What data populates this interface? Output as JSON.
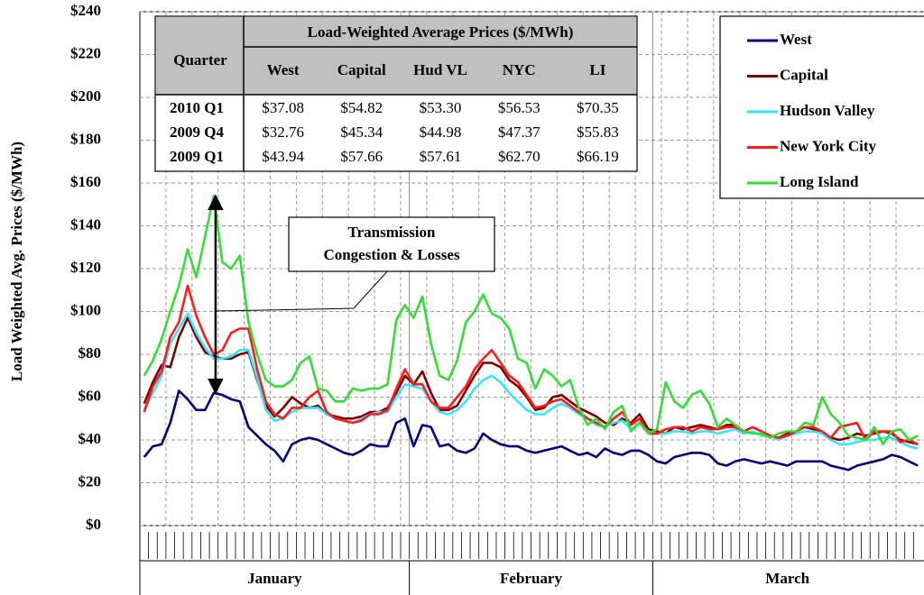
{
  "chart_data": {
    "type": "line",
    "y_label": "Load Weighted Avg. Prices  ($/MWh)",
    "ylim": [
      0,
      240
    ],
    "yticks": [
      {
        "value": 0,
        "label": "$0"
      },
      {
        "value": 20,
        "label": "$20"
      },
      {
        "value": 40,
        "label": "$40"
      },
      {
        "value": 60,
        "label": "$60"
      },
      {
        "value": 80,
        "label": "$80"
      },
      {
        "value": 100,
        "label": "$100"
      },
      {
        "value": 120,
        "label": "$120"
      },
      {
        "value": 140,
        "label": "$140"
      },
      {
        "value": 160,
        "label": "$160"
      },
      {
        "value": 180,
        "label": "$180"
      },
      {
        "value": 200,
        "label": "$200"
      },
      {
        "value": 220,
        "label": "$220"
      },
      {
        "value": 240,
        "label": "$240"
      }
    ],
    "grid": true,
    "legend": "upper right",
    "months": [
      {
        "label": "January",
        "days": 31
      },
      {
        "label": "February",
        "days": 28
      },
      {
        "label": "March",
        "days": 31
      }
    ],
    "series": [
      {
        "name": "West",
        "color": "#000080",
        "values": [
          32,
          37,
          38,
          48,
          63,
          59,
          54,
          54,
          62,
          61,
          59,
          58,
          46,
          42,
          38,
          35,
          30,
          38,
          40,
          41,
          40,
          38,
          36,
          34,
          33,
          35,
          38,
          37,
          37,
          48,
          50,
          37,
          47,
          46,
          37,
          38,
          35,
          34,
          36,
          43,
          40,
          38,
          37,
          37,
          35,
          34,
          35,
          36,
          37,
          35,
          33,
          34,
          32,
          36,
          34,
          33,
          35,
          35,
          33,
          30,
          29,
          32,
          33,
          34,
          34,
          33,
          29,
          28,
          30,
          31,
          30,
          29,
          30,
          29,
          28,
          30,
          30,
          30,
          30,
          28,
          27,
          26,
          28,
          29,
          30,
          31,
          33,
          32,
          30,
          28
        ]
      },
      {
        "name": "Capital",
        "color": "#800000",
        "values": [
          57,
          67,
          75,
          74,
          88,
          97,
          88,
          81,
          79,
          78,
          78,
          80,
          81,
          68,
          56,
          51,
          55,
          60,
          57,
          55,
          56,
          52,
          51,
          50,
          50,
          51,
          53,
          53,
          55,
          62,
          70,
          66,
          72,
          62,
          54,
          54,
          56,
          63,
          70,
          76,
          76,
          74,
          68,
          65,
          60,
          54,
          55,
          60,
          61,
          58,
          55,
          53,
          51,
          48,
          47,
          50,
          48,
          52,
          45,
          44,
          43,
          46,
          45,
          46,
          47,
          46,
          45,
          47,
          47,
          44,
          46,
          44,
          42,
          41,
          43,
          44,
          46,
          45,
          43,
          41,
          40,
          41,
          43,
          42,
          43,
          44,
          43,
          40,
          39,
          38
        ]
      },
      {
        "name": "Hudson Valley",
        "color": "#33e6ff",
        "values": [
          54,
          62,
          70,
          85,
          92,
          99,
          90,
          83,
          78,
          78,
          79,
          82,
          82,
          69,
          54,
          49,
          50,
          53,
          55,
          55,
          55,
          52,
          50,
          49,
          48,
          50,
          52,
          53,
          53,
          60,
          66,
          65,
          64,
          58,
          53,
          52,
          54,
          58,
          64,
          68,
          70,
          67,
          62,
          58,
          54,
          52,
          52,
          55,
          57,
          55,
          52,
          50,
          47,
          46,
          48,
          49,
          45,
          48,
          44,
          43,
          43,
          44,
          44,
          43,
          44,
          44,
          43,
          44,
          45,
          43,
          44,
          42,
          42,
          40,
          42,
          43,
          44,
          44,
          43,
          40,
          38,
          38,
          39,
          40,
          40,
          41,
          41,
          39,
          37,
          36
        ]
      },
      {
        "name": "New York City",
        "color": "#ff1a1a",
        "values": [
          53,
          65,
          72,
          88,
          95,
          112,
          98,
          88,
          80,
          82,
          90,
          92,
          92,
          73,
          58,
          52,
          50,
          55,
          55,
          60,
          63,
          53,
          50,
          49,
          48,
          49,
          52,
          52,
          54,
          64,
          73,
          66,
          66,
          58,
          55,
          55,
          60,
          65,
          73,
          78,
          82,
          76,
          70,
          67,
          61,
          55,
          56,
          58,
          59,
          56,
          53,
          50,
          48,
          46,
          50,
          53,
          47,
          50,
          43,
          43,
          45,
          46,
          46,
          44,
          46,
          45,
          45,
          46,
          46,
          44,
          46,
          44,
          42,
          41,
          42,
          44,
          46,
          46,
          44,
          41,
          46,
          47,
          48,
          40,
          44,
          44,
          44,
          39,
          40,
          38
        ]
      },
      {
        "name": "Long Island",
        "color": "#33dd33",
        "values": [
          70,
          77,
          87,
          100,
          112,
          129,
          116,
          135,
          154,
          123,
          120,
          126,
          95,
          80,
          68,
          65,
          65,
          68,
          76,
          79,
          64,
          63,
          58,
          58,
          64,
          63,
          64,
          64,
          66,
          96,
          103,
          97,
          107,
          85,
          70,
          68,
          77,
          95,
          100,
          108,
          99,
          97,
          92,
          78,
          76,
          64,
          73,
          70,
          65,
          68,
          55,
          47,
          50,
          45,
          53,
          56,
          44,
          48,
          43,
          45,
          67,
          58,
          55,
          61,
          63,
          57,
          46,
          50,
          47,
          44,
          43,
          43,
          41,
          43,
          44,
          44,
          48,
          47,
          60,
          52,
          48,
          42,
          41,
          40,
          46,
          38,
          44,
          45,
          40,
          42
        ]
      }
    ],
    "annotation": [
      "Transmission",
      "Congestion & Losses"
    ],
    "table": {
      "title": "Load-Weighted Average Prices ($/MWh)",
      "row_header": "Quarter",
      "columns": [
        "West",
        "Capital",
        "Hud VL",
        "NYC",
        "LI"
      ],
      "rows": [
        {
          "quarter": "2010 Q1",
          "values": [
            "$37.08",
            "$54.82",
            "$53.30",
            "$56.53",
            "$70.35"
          ]
        },
        {
          "quarter": "2009 Q4",
          "values": [
            "$32.76",
            "$45.34",
            "$44.98",
            "$47.37",
            "$55.83"
          ]
        },
        {
          "quarter": "2009 Q1",
          "values": [
            "$43.94",
            "$57.66",
            "$57.61",
            "$62.70",
            "$66.19"
          ]
        }
      ]
    }
  }
}
